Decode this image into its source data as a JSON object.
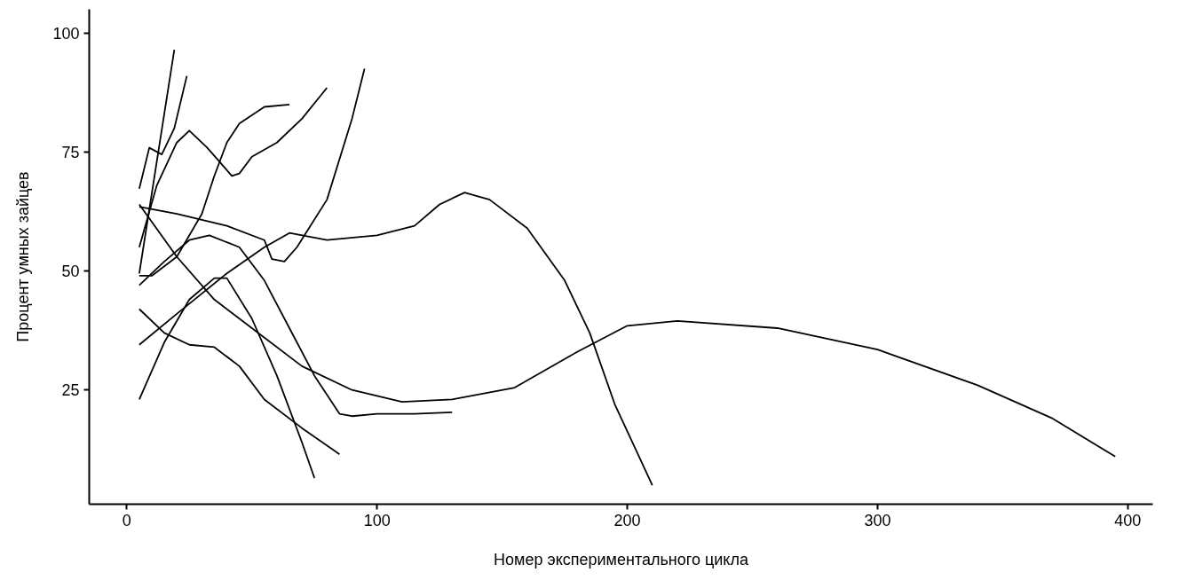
{
  "chart_data": {
    "type": "line",
    "xlabel": "Номер экспериментального цикла",
    "ylabel": "Процент умных зайцев",
    "xlim": [
      -15,
      410
    ],
    "ylim": [
      1,
      105
    ],
    "xticks": [
      0,
      100,
      200,
      300,
      400
    ],
    "yticks": [
      25,
      50,
      75,
      100
    ],
    "grid": false,
    "marker": "none",
    "line_style": "solid",
    "series": [
      {
        "color": "#000000",
        "x": [
          5,
          12,
          19
        ],
        "values": [
          49.5,
          73,
          96.5
        ]
      },
      {
        "color": "#000000",
        "x": [
          5,
          9,
          14,
          19,
          24
        ],
        "values": [
          67.3,
          75.9,
          74.5,
          80,
          91
        ]
      },
      {
        "color": "#000000",
        "x": [
          5,
          12,
          20,
          25,
          32,
          37,
          42,
          45,
          50,
          60,
          70,
          80
        ],
        "values": [
          55,
          68,
          77,
          79.5,
          76,
          73,
          70,
          70.5,
          74,
          77,
          82,
          88.5
        ]
      },
      {
        "color": "#000000",
        "x": [
          5,
          10,
          20,
          30,
          35,
          40,
          45,
          55,
          65
        ],
        "values": [
          49,
          49,
          53,
          62,
          70,
          77,
          81,
          84.5,
          85
        ]
      },
      {
        "color": "#000000",
        "x": [
          5,
          20,
          40,
          55,
          58,
          63,
          68,
          80,
          90,
          95
        ],
        "values": [
          63.5,
          62,
          59.5,
          56.5,
          52.5,
          52,
          55,
          65,
          82,
          92.5
        ]
      },
      {
        "color": "#000000",
        "x": [
          5,
          20,
          35,
          50,
          70,
          90,
          110,
          130,
          155,
          180,
          200,
          220,
          260,
          300,
          340,
          370,
          395
        ],
        "values": [
          64,
          53,
          44,
          38,
          30,
          25,
          22.5,
          23,
          25.5,
          33,
          38.5,
          39.5,
          38,
          33.5,
          26,
          19,
          11
        ]
      },
      {
        "color": "#000000",
        "x": [
          5,
          20,
          40,
          55,
          65,
          80,
          100,
          115,
          125,
          135,
          145,
          160,
          175,
          185,
          195,
          210
        ],
        "values": [
          34.5,
          41,
          49.5,
          55,
          58,
          56.5,
          57.5,
          59.5,
          64,
          66.5,
          65,
          59,
          48,
          37,
          22,
          5
        ]
      },
      {
        "color": "#000000",
        "x": [
          5,
          15,
          25,
          33,
          45,
          55,
          65,
          75,
          85,
          90,
          100,
          115,
          130
        ],
        "values": [
          47,
          52,
          56.5,
          57.5,
          55,
          48,
          38,
          28,
          20,
          19.5,
          20,
          20,
          20.3
        ]
      },
      {
        "color": "#000000",
        "x": [
          5,
          15,
          25,
          35,
          40,
          50,
          60,
          70,
          75
        ],
        "values": [
          23,
          35,
          44,
          48.5,
          48.5,
          40,
          28,
          14,
          6.5
        ]
      },
      {
        "color": "#000000",
        "x": [
          5,
          15,
          25,
          35,
          45,
          55,
          70,
          85
        ],
        "values": [
          42,
          37,
          34.5,
          34,
          30,
          23,
          17,
          11.5
        ]
      }
    ]
  }
}
